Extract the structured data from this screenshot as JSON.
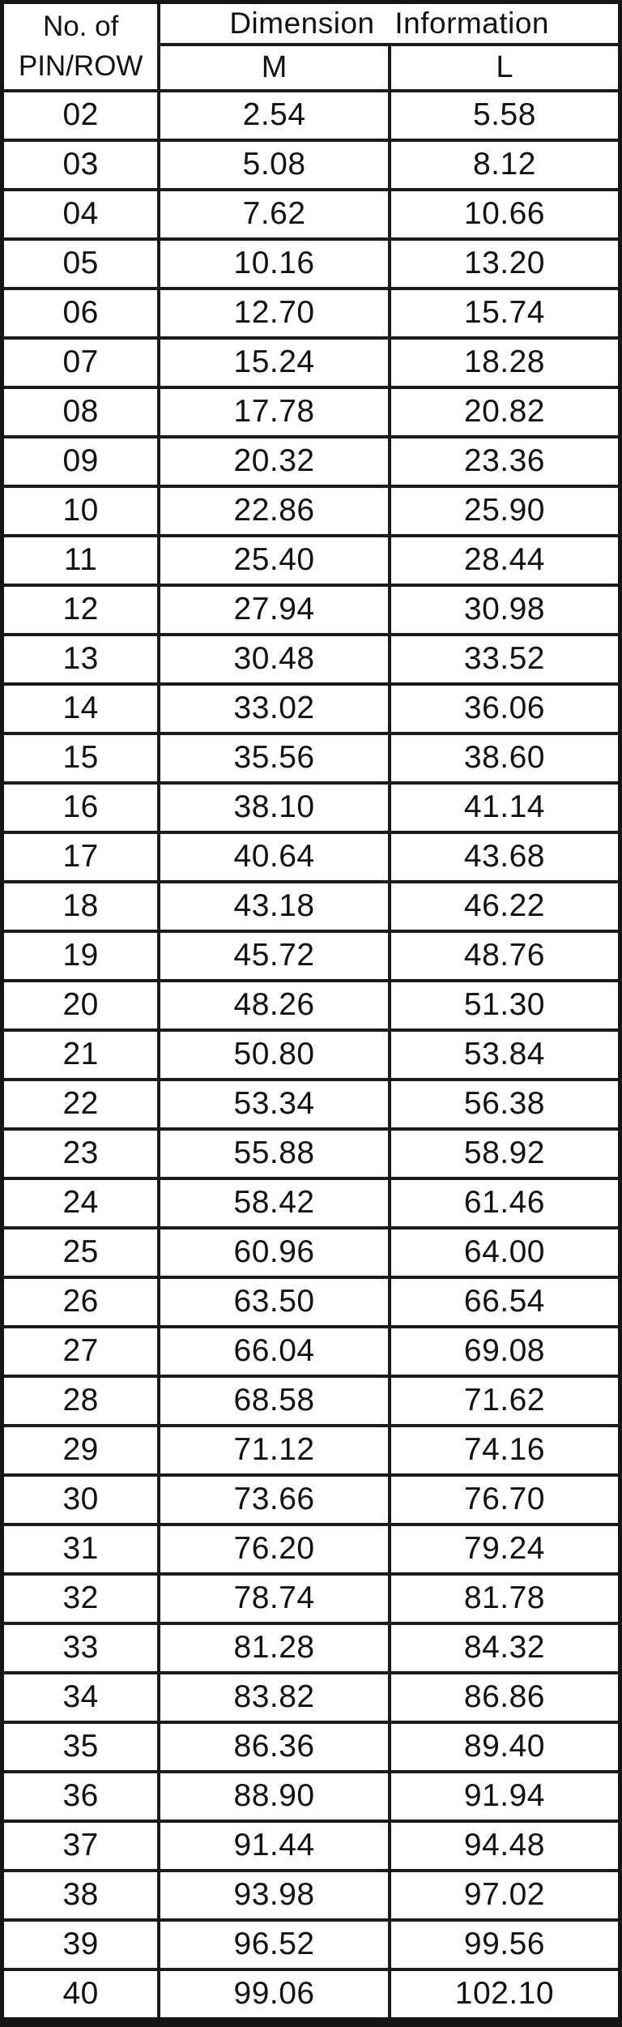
{
  "table": {
    "header": {
      "pins_line1": "No. of",
      "pins_line2": "PIN/ROW",
      "group_label": "Dimension Information",
      "col_m": "M",
      "col_l": "L"
    },
    "rows": [
      {
        "pins": "02",
        "m": "2.54",
        "l": "5.58"
      },
      {
        "pins": "03",
        "m": "5.08",
        "l": "8.12"
      },
      {
        "pins": "04",
        "m": "7.62",
        "l": "10.66"
      },
      {
        "pins": "05",
        "m": "10.16",
        "l": "13.20"
      },
      {
        "pins": "06",
        "m": "12.70",
        "l": "15.74"
      },
      {
        "pins": "07",
        "m": "15.24",
        "l": "18.28"
      },
      {
        "pins": "08",
        "m": "17.78",
        "l": "20.82"
      },
      {
        "pins": "09",
        "m": "20.32",
        "l": "23.36"
      },
      {
        "pins": "10",
        "m": "22.86",
        "l": "25.90"
      },
      {
        "pins": "11",
        "m": "25.40",
        "l": "28.44"
      },
      {
        "pins": "12",
        "m": "27.94",
        "l": "30.98"
      },
      {
        "pins": "13",
        "m": "30.48",
        "l": "33.52"
      },
      {
        "pins": "14",
        "m": "33.02",
        "l": "36.06"
      },
      {
        "pins": "15",
        "m": "35.56",
        "l": "38.60"
      },
      {
        "pins": "16",
        "m": "38.10",
        "l": "41.14"
      },
      {
        "pins": "17",
        "m": "40.64",
        "l": "43.68"
      },
      {
        "pins": "18",
        "m": "43.18",
        "l": "46.22"
      },
      {
        "pins": "19",
        "m": "45.72",
        "l": "48.76"
      },
      {
        "pins": "20",
        "m": "48.26",
        "l": "51.30"
      },
      {
        "pins": "21",
        "m": "50.80",
        "l": "53.84"
      },
      {
        "pins": "22",
        "m": "53.34",
        "l": "56.38"
      },
      {
        "pins": "23",
        "m": "55.88",
        "l": "58.92"
      },
      {
        "pins": "24",
        "m": "58.42",
        "l": "61.46"
      },
      {
        "pins": "25",
        "m": "60.96",
        "l": "64.00"
      },
      {
        "pins": "26",
        "m": "63.50",
        "l": "66.54"
      },
      {
        "pins": "27",
        "m": "66.04",
        "l": "69.08"
      },
      {
        "pins": "28",
        "m": "68.58",
        "l": "71.62"
      },
      {
        "pins": "29",
        "m": "71.12",
        "l": "74.16"
      },
      {
        "pins": "30",
        "m": "73.66",
        "l": "76.70"
      },
      {
        "pins": "31",
        "m": "76.20",
        "l": "79.24"
      },
      {
        "pins": "32",
        "m": "78.74",
        "l": "81.78"
      },
      {
        "pins": "33",
        "m": "81.28",
        "l": "84.32"
      },
      {
        "pins": "34",
        "m": "83.82",
        "l": "86.86"
      },
      {
        "pins": "35",
        "m": "86.36",
        "l": "89.40"
      },
      {
        "pins": "36",
        "m": "88.90",
        "l": "91.94"
      },
      {
        "pins": "37",
        "m": "91.44",
        "l": "94.48"
      },
      {
        "pins": "38",
        "m": "93.98",
        "l": "97.02"
      },
      {
        "pins": "39",
        "m": "96.52",
        "l": "99.56"
      },
      {
        "pins": "40",
        "m": "99.06",
        "l": "102.10"
      }
    ]
  },
  "colors": {
    "background": "#ffffff",
    "border": "#1b1b1b",
    "text": "#121212"
  }
}
